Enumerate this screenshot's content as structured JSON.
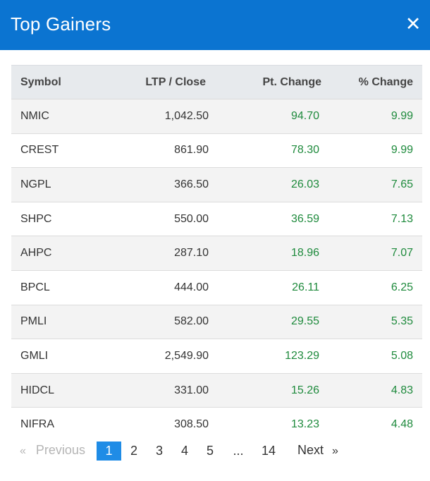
{
  "header": {
    "title": "Top Gainers",
    "close_icon": "close-icon"
  },
  "table": {
    "columns": [
      "Symbol",
      "LTP / Close",
      "Pt. Change",
      "% Change"
    ],
    "rows": [
      {
        "symbol": "NMIC",
        "ltp": "1,042.50",
        "pt": "94.70",
        "pct": "9.99"
      },
      {
        "symbol": "CREST",
        "ltp": "861.90",
        "pt": "78.30",
        "pct": "9.99"
      },
      {
        "symbol": "NGPL",
        "ltp": "366.50",
        "pt": "26.03",
        "pct": "7.65"
      },
      {
        "symbol": "SHPC",
        "ltp": "550.00",
        "pt": "36.59",
        "pct": "7.13"
      },
      {
        "symbol": "AHPC",
        "ltp": "287.10",
        "pt": "18.96",
        "pct": "7.07"
      },
      {
        "symbol": "BPCL",
        "ltp": "444.00",
        "pt": "26.11",
        "pct": "6.25"
      },
      {
        "symbol": "PMLI",
        "ltp": "582.00",
        "pt": "29.55",
        "pct": "5.35"
      },
      {
        "symbol": "GMLI",
        "ltp": "2,549.90",
        "pt": "123.29",
        "pct": "5.08"
      },
      {
        "symbol": "HIDCL",
        "ltp": "331.00",
        "pt": "15.26",
        "pct": "4.83"
      },
      {
        "symbol": "NIFRA",
        "ltp": "308.50",
        "pt": "13.23",
        "pct": "4.48"
      }
    ]
  },
  "pagination": {
    "prev_arrow": "«",
    "prev_label": "Previous",
    "pages": [
      "1",
      "2",
      "3",
      "4",
      "5"
    ],
    "ellipsis": "...",
    "last_page": "14",
    "next_label": "Next",
    "next_arrow": "»",
    "current": "1"
  },
  "colors": {
    "header_bg": "#0b74d1",
    "positive": "#1e8a3c",
    "active_page": "#1f8ce6"
  }
}
